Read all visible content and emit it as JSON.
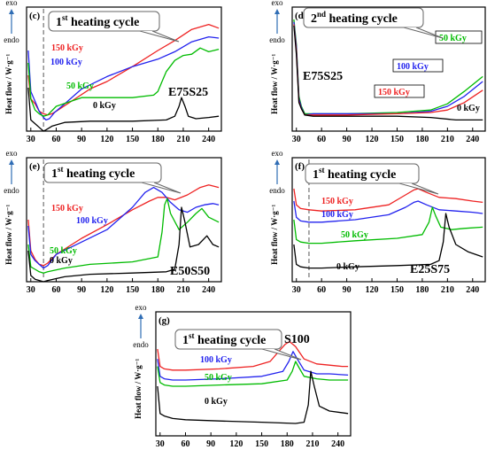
{
  "colors": {
    "0 kGy": "#000000",
    "50 kGy": "#00bb00",
    "100 kGy": "#2222ee",
    "150 kGy": "#ee2222"
  },
  "chart_data": [
    {
      "type": "line",
      "panel_label": "(c)",
      "cycle_sup": "st",
      "cycle_rest": " heating cycle",
      "cycle_pre": "1",
      "sample": "E75S25",
      "xlabel": "",
      "ylabel": "Heat flow / W·g⁻¹",
      "direction_top": "exo",
      "direction_bottom": "endo",
      "xlim": [
        25,
        255
      ],
      "xticks": [
        30,
        60,
        90,
        120,
        150,
        180,
        210,
        240
      ],
      "dashed_x": 45,
      "series": [
        {
          "name": "150 kGy",
          "label": "150 kGy",
          "x": [
            27,
            30,
            35,
            40,
            45,
            50,
            55,
            60,
            80,
            100,
            120,
            150,
            180,
            200,
            220,
            240,
            252
          ],
          "y": [
            0.55,
            0.74,
            0.78,
            0.84,
            0.86,
            0.87,
            0.86,
            0.84,
            0.75,
            0.66,
            0.6,
            0.48,
            0.35,
            0.27,
            0.18,
            0.14,
            0.17
          ]
        },
        {
          "name": "100 kGy",
          "label": "100 kGy",
          "x": [
            27,
            30,
            35,
            40,
            45,
            48,
            52,
            58,
            70,
            90,
            120,
            150,
            180,
            200,
            220,
            240,
            252
          ],
          "y": [
            0.35,
            0.68,
            0.76,
            0.84,
            0.89,
            0.91,
            0.9,
            0.85,
            0.78,
            0.66,
            0.56,
            0.48,
            0.42,
            0.36,
            0.28,
            0.24,
            0.25
          ]
        },
        {
          "name": "50 kGy",
          "label": "50 kGy",
          "x": [
            27,
            30,
            35,
            40,
            45,
            50,
            60,
            90,
            120,
            150,
            175,
            180,
            185,
            190,
            200,
            210,
            220,
            230,
            240,
            252
          ],
          "y": [
            0.45,
            0.74,
            0.83,
            0.86,
            0.88,
            0.87,
            0.8,
            0.73,
            0.73,
            0.73,
            0.71,
            0.68,
            0.6,
            0.52,
            0.43,
            0.39,
            0.38,
            0.33,
            0.36,
            0.34
          ]
        },
        {
          "name": "0 kGy",
          "label": "0 kGy",
          "x": [
            27,
            30,
            35,
            40,
            45,
            48,
            55,
            70,
            100,
            150,
            190,
            200,
            205,
            208,
            212,
            216,
            225,
            240,
            252
          ],
          "y": [
            0.65,
            0.91,
            0.94,
            0.97,
            1.0,
            0.99,
            0.96,
            0.93,
            0.92,
            0.92,
            0.91,
            0.88,
            0.8,
            0.73,
            0.8,
            0.88,
            0.9,
            0.89,
            0.88
          ]
        }
      ]
    },
    {
      "type": "line",
      "panel_label": "(d)",
      "cycle_sup": "nd",
      "cycle_rest": " heating cycle",
      "cycle_pre": "2",
      "sample": "E75S25",
      "xlabel": "",
      "ylabel": "Heat flow / W·g⁻¹",
      "direction_top": "exo",
      "direction_bottom": "endo",
      "xlim": [
        25,
        255
      ],
      "xticks": [
        30,
        60,
        90,
        120,
        150,
        180,
        210,
        240
      ],
      "series": [
        {
          "name": "50 kGy",
          "label": "50 kGy",
          "x": [
            27,
            30,
            33,
            36,
            40,
            50,
            90,
            150,
            190,
            210,
            230,
            252
          ],
          "y": [
            0.1,
            0.3,
            0.72,
            0.8,
            0.86,
            0.86,
            0.86,
            0.85,
            0.83,
            0.78,
            0.68,
            0.56
          ]
        },
        {
          "name": "100 kGy",
          "label": "100 kGy",
          "x": [
            27,
            30,
            33,
            36,
            40,
            50,
            90,
            150,
            190,
            210,
            230,
            252
          ],
          "y": [
            0.12,
            0.32,
            0.74,
            0.81,
            0.87,
            0.86,
            0.86,
            0.86,
            0.84,
            0.8,
            0.72,
            0.6
          ]
        },
        {
          "name": "150 kGy",
          "label": "150 kGy",
          "x": [
            27,
            30,
            33,
            36,
            40,
            50,
            90,
            150,
            190,
            210,
            230,
            252
          ],
          "y": [
            0.14,
            0.35,
            0.76,
            0.82,
            0.87,
            0.87,
            0.87,
            0.86,
            0.85,
            0.83,
            0.77,
            0.67
          ]
        },
        {
          "name": "0 kGy",
          "label": "0 kGy",
          "x": [
            27,
            30,
            33,
            36,
            40,
            50,
            90,
            150,
            190,
            220,
            252
          ],
          "y": [
            0.15,
            0.38,
            0.77,
            0.82,
            0.87,
            0.88,
            0.88,
            0.88,
            0.89,
            0.91,
            0.91
          ]
        }
      ]
    },
    {
      "type": "line",
      "panel_label": "(e)",
      "cycle_sup": "st",
      "cycle_rest": " heating cycle",
      "cycle_pre": "1",
      "sample": "E50S50",
      "xlabel": "",
      "ylabel": "Heat flow / W·g⁻¹",
      "direction_top": "exo",
      "direction_bottom": "endo",
      "xlim": [
        25,
        255
      ],
      "xticks": [
        30,
        60,
        90,
        120,
        150,
        180,
        210,
        240
      ],
      "dashed_x": 45,
      "series": [
        {
          "name": "150 kGy",
          "label": "150 kGy",
          "x": [
            27,
            30,
            35,
            40,
            45,
            50,
            60,
            90,
            120,
            150,
            170,
            180,
            190,
            200,
            215,
            230,
            240,
            252
          ],
          "y": [
            0.5,
            0.75,
            0.82,
            0.86,
            0.87,
            0.85,
            0.78,
            0.65,
            0.54,
            0.42,
            0.35,
            0.32,
            0.32,
            0.34,
            0.3,
            0.24,
            0.22,
            0.24
          ]
        },
        {
          "name": "100 kGy",
          "label": "100 kGy",
          "x": [
            27,
            30,
            35,
            40,
            45,
            50,
            60,
            90,
            120,
            150,
            165,
            175,
            185,
            195,
            205,
            215,
            225,
            235,
            245,
            252
          ],
          "y": [
            0.55,
            0.78,
            0.83,
            0.86,
            0.89,
            0.87,
            0.78,
            0.68,
            0.58,
            0.4,
            0.28,
            0.24,
            0.28,
            0.36,
            0.42,
            0.44,
            0.4,
            0.38,
            0.37,
            0.38
          ]
        },
        {
          "name": "50 kGy",
          "label": "50 kGy",
          "x": [
            27,
            30,
            35,
            40,
            45,
            50,
            70,
            100,
            150,
            180,
            185,
            188,
            191,
            195,
            205,
            215,
            225,
            232,
            240,
            252
          ],
          "y": [
            0.7,
            0.88,
            0.9,
            0.92,
            0.93,
            0.92,
            0.89,
            0.86,
            0.84,
            0.8,
            0.6,
            0.38,
            0.33,
            0.45,
            0.58,
            0.52,
            0.45,
            0.41,
            0.48,
            0.52
          ]
        },
        {
          "name": "0 kGy",
          "label": "0 kGy",
          "x": [
            27,
            30,
            35,
            40,
            45,
            50,
            70,
            100,
            150,
            190,
            200,
            205,
            208,
            212,
            218,
            228,
            238,
            245,
            252
          ],
          "y": [
            0.75,
            0.95,
            0.98,
            0.99,
            1.0,
            0.99,
            0.96,
            0.94,
            0.93,
            0.92,
            0.9,
            0.7,
            0.4,
            0.52,
            0.72,
            0.7,
            0.63,
            0.7,
            0.72
          ]
        }
      ]
    },
    {
      "type": "line",
      "panel_label": "(f)",
      "cycle_sup": "st",
      "cycle_rest": " heating cycle",
      "cycle_pre": "1",
      "sample": "E25S75",
      "xlabel": "",
      "ylabel": "Heat flow / W·g⁻¹",
      "direction_top": "exo",
      "direction_bottom": "endo",
      "xlim": [
        25,
        255
      ],
      "xticks": [
        30,
        60,
        90,
        120,
        150,
        180,
        210,
        240
      ],
      "dashed_x": 45,
      "series": [
        {
          "name": "150 kGy",
          "label": "150 kGy",
          "x": [
            27,
            30,
            35,
            45,
            60,
            100,
            140,
            160,
            170,
            175,
            185,
            200,
            220,
            240,
            252
          ],
          "y": [
            0.25,
            0.38,
            0.41,
            0.42,
            0.43,
            0.42,
            0.38,
            0.3,
            0.26,
            0.25,
            0.28,
            0.32,
            0.33,
            0.35,
            0.36
          ]
        },
        {
          "name": "100 kGy",
          "label": "100 kGy",
          "x": [
            27,
            30,
            35,
            45,
            60,
            100,
            140,
            160,
            170,
            175,
            185,
            200,
            220,
            240,
            252
          ],
          "y": [
            0.35,
            0.48,
            0.51,
            0.52,
            0.52,
            0.5,
            0.46,
            0.4,
            0.36,
            0.35,
            0.38,
            0.42,
            0.43,
            0.44,
            0.45
          ]
        },
        {
          "name": "50 kGy",
          "label": "50 kGy",
          "x": [
            27,
            30,
            35,
            45,
            60,
            100,
            150,
            180,
            188,
            192,
            196,
            202,
            215,
            230,
            252
          ],
          "y": [
            0.5,
            0.66,
            0.68,
            0.69,
            0.69,
            0.67,
            0.65,
            0.62,
            0.52,
            0.4,
            0.47,
            0.56,
            0.58,
            0.57,
            0.56
          ]
        },
        {
          "name": "0 kGy",
          "label": "0 kGy",
          "x": [
            27,
            30,
            35,
            45,
            60,
            100,
            150,
            190,
            200,
            205,
            208,
            212,
            220,
            235,
            252
          ],
          "y": [
            0.7,
            0.86,
            0.88,
            0.89,
            0.89,
            0.88,
            0.87,
            0.86,
            0.83,
            0.68,
            0.45,
            0.56,
            0.7,
            0.76,
            0.8
          ]
        }
      ]
    },
    {
      "type": "line",
      "panel_label": "(g)",
      "cycle_sup": "st",
      "cycle_rest": " heating cycle",
      "cycle_pre": "1",
      "sample": "S100",
      "xlabel": "",
      "ylabel": "Heat flow / W·g⁻¹",
      "direction_top": "exo",
      "direction_bottom": "endo",
      "xlim": [
        25,
        255
      ],
      "xticks": [
        30,
        60,
        90,
        120,
        150,
        180,
        210,
        240
      ],
      "series": [
        {
          "name": "150 kGy",
          "label": "150 kGy",
          "x": [
            27,
            30,
            35,
            45,
            60,
            100,
            140,
            160,
            170,
            178,
            183,
            190,
            200,
            215,
            230,
            245,
            252
          ],
          "y": [
            0.3,
            0.44,
            0.46,
            0.47,
            0.47,
            0.46,
            0.44,
            0.4,
            0.32,
            0.26,
            0.24,
            0.28,
            0.38,
            0.42,
            0.43,
            0.44,
            0.44
          ]
        },
        {
          "name": "100 kGy",
          "label": "100 kGy",
          "x": [
            27,
            30,
            35,
            45,
            60,
            100,
            150,
            175,
            182,
            187,
            192,
            200,
            215,
            230,
            252
          ],
          "y": [
            0.38,
            0.52,
            0.54,
            0.55,
            0.55,
            0.54,
            0.52,
            0.48,
            0.4,
            0.32,
            0.38,
            0.47,
            0.5,
            0.5,
            0.51
          ]
        },
        {
          "name": "50 kGy",
          "label": "50 kGy",
          "x": [
            27,
            30,
            35,
            45,
            60,
            100,
            150,
            180,
            186,
            190,
            194,
            200,
            215,
            230,
            252
          ],
          "y": [
            0.44,
            0.57,
            0.59,
            0.6,
            0.6,
            0.59,
            0.58,
            0.55,
            0.48,
            0.4,
            0.45,
            0.52,
            0.54,
            0.55,
            0.55
          ]
        },
        {
          "name": "0 kGy",
          "label": "0 kGy",
          "x": [
            27,
            30,
            35,
            45,
            60,
            100,
            150,
            190,
            200,
            205,
            208,
            212,
            218,
            230,
            252
          ],
          "y": [
            0.6,
            0.82,
            0.84,
            0.86,
            0.87,
            0.88,
            0.89,
            0.9,
            0.89,
            0.75,
            0.48,
            0.6,
            0.76,
            0.8,
            0.82
          ]
        }
      ]
    }
  ]
}
